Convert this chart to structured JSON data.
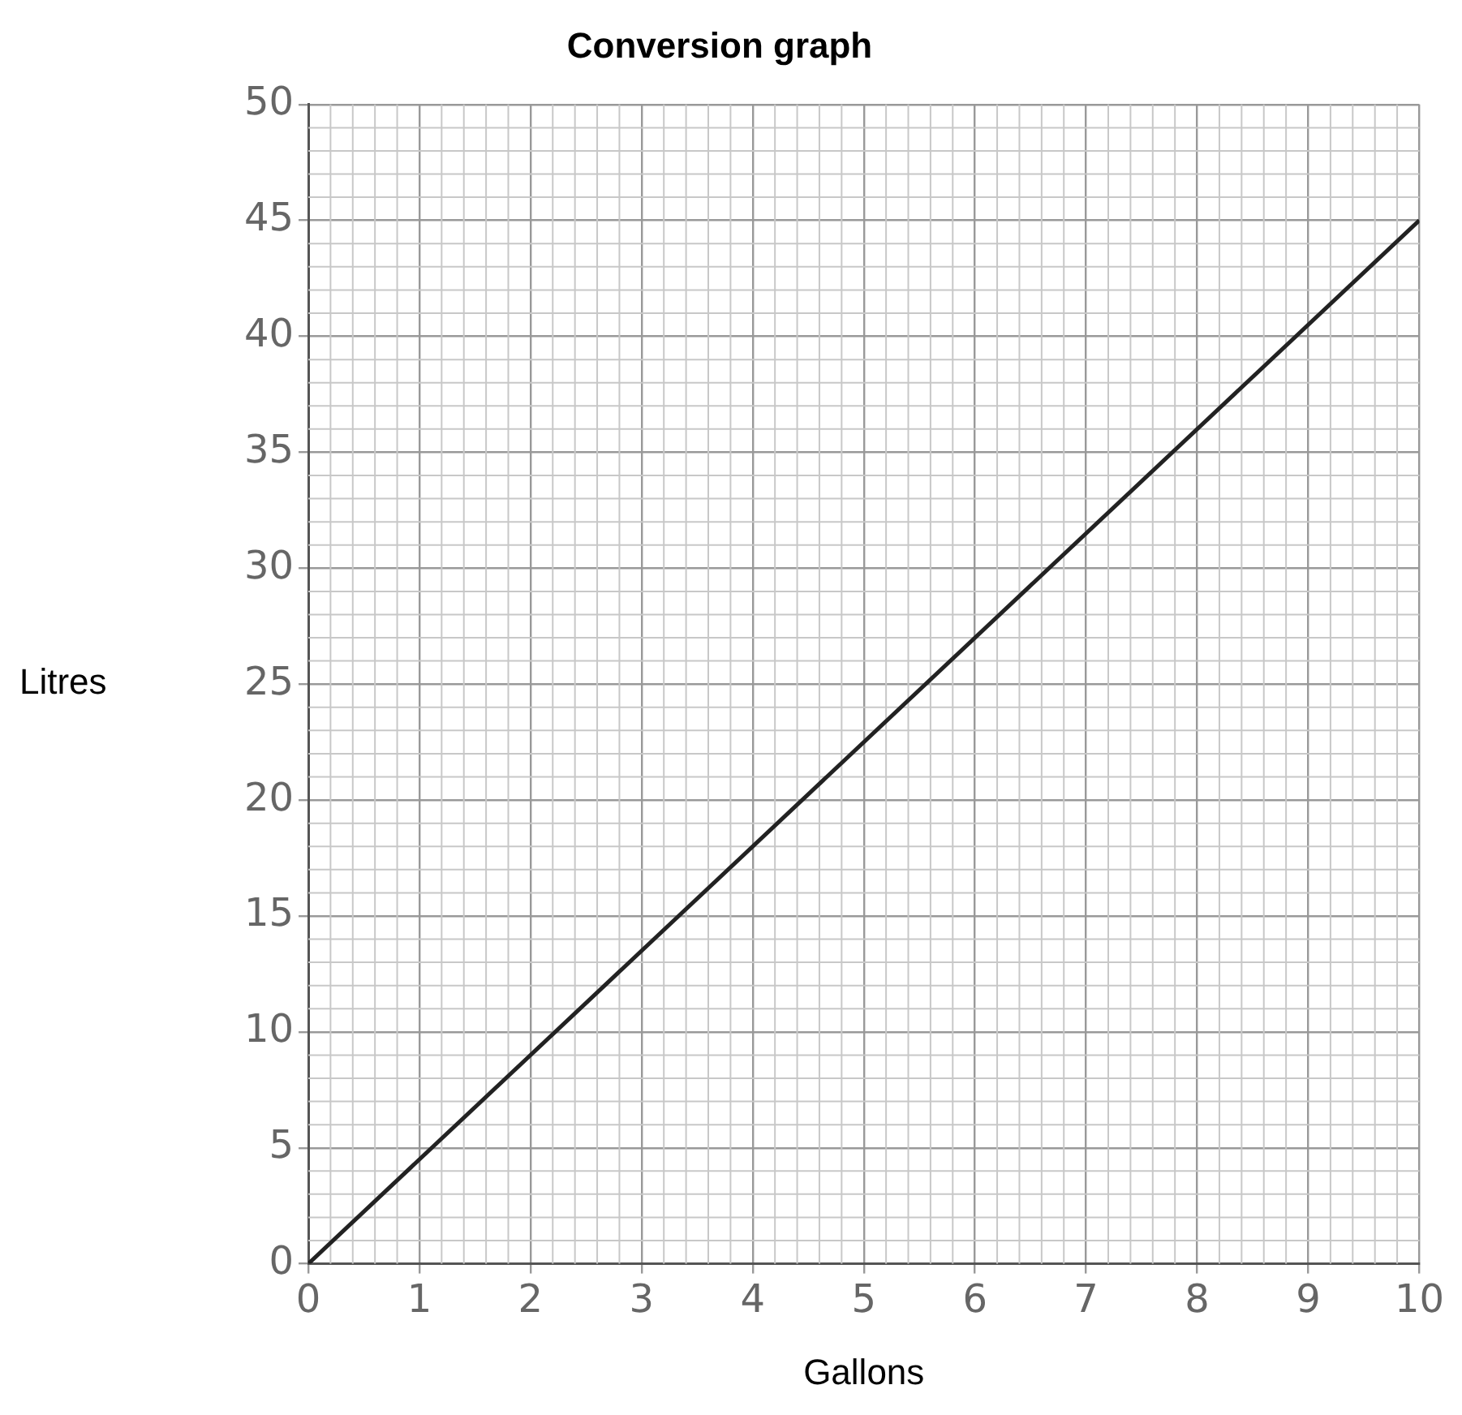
{
  "chart_data": {
    "type": "line",
    "title": "Conversion graph",
    "xlabel": "Gallons",
    "ylabel": "Litres",
    "x": [
      0,
      10
    ],
    "series": [
      {
        "color": "#222222",
        "values": [
          0,
          45
        ]
      }
    ],
    "xlim": [
      0,
      10
    ],
    "xticks": [
      0,
      1,
      2,
      3,
      4,
      5,
      6,
      7,
      8,
      9,
      10
    ],
    "ylim": [
      0,
      50
    ],
    "yticks": [
      0,
      5,
      10,
      15,
      20,
      25,
      30,
      35,
      40,
      45,
      50
    ],
    "grid": true,
    "legend": false,
    "marker": "none",
    "line_style": "solid"
  }
}
